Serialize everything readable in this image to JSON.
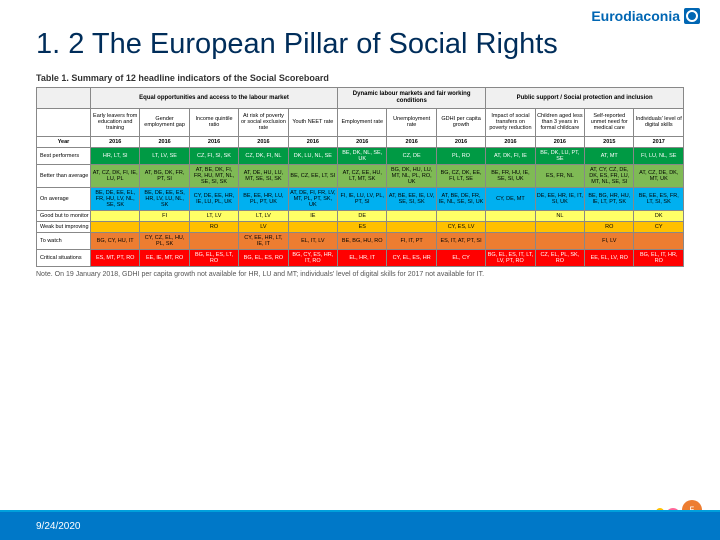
{
  "logo_text": "Eurodiaconia",
  "title": "1. 2 The European Pillar of Social Rights",
  "table_title": "Table 1. Summary of 12 headline indicators of the Social Scoreboard",
  "note": "Note. On 19 January 2018, GDHI per capita growth not available for HR, LU and MT; individuals' level of digital skills for 2017 not available for IT.",
  "date": "9/24/2020",
  "page_num": "5",
  "group_headers": [
    "Equal opportunities and access to the labour market",
    "Dynamic labour markets and fair working conditions",
    "Public support / Social protection and inclusion"
  ],
  "columns": [
    "Early leavers from education and training",
    "Gender employment gap",
    "Income quintile ratio",
    "At risk of poverty or social exclusion rate",
    "Youth NEET rate",
    "Employment rate",
    "Unemployment rate",
    "GDHI per capita growth",
    "Impact of social transfers on poverty reduction",
    "Children aged less than 3 years in formal childcare",
    "Self-reported unmet need for medical care",
    "Individuals' level of digital skills"
  ],
  "years": [
    "2016",
    "2016",
    "2016",
    "2016",
    "2016",
    "2016",
    "2016",
    "2016",
    "2016",
    "2016",
    "2015",
    "2017"
  ],
  "row_labels": [
    "Best performers",
    "Better than average",
    "On average",
    "Good but to monitor",
    "Weak but improving",
    "To watch",
    "Critical situations"
  ],
  "row_colors": [
    "#009a44",
    "#7fba55",
    "#00b0f0",
    "#ffff66",
    "#ffc000",
    "#ed7d31",
    "#ff0000"
  ],
  "rows": [
    [
      "HR, LT, SI",
      "LT, LV, SE",
      "CZ, FI, SI, SK",
      "CZ, DK, FI, NL",
      "DK, LU, NL, SE",
      "BE, DK, NL, SE, UK",
      "CZ, DE",
      "PL, RO",
      "AT, DK, FI, IE",
      "BE, DK, LU, PT, SE",
      "AT, MT",
      "FI, LU, NL, SE"
    ],
    [
      "AT, CZ, DK, FI, IE, LU, PL",
      "AT, BG, DK, FR, PT, SI",
      "AT, BE, DK, FI, FR, HU, MT, NL, SE, SI, SK",
      "AT, DE, HU, LU, MT, SE, SI, SK",
      "BE, CZ, EE, LT, SI",
      "AT, CZ, EE, HU, LT, MT, SK",
      "BG, DK, HU, LU, MT, NL, PL, RO, UK",
      "BG, CZ, DK, EE, FI, LT, SE",
      "BE, FR, HU, IE, SE, SI, UK",
      "ES, FR, NL",
      "AT, CY, CZ, DE, DK, ES, FR, LU, MT, NL, SE, SI",
      "AT, CZ, DE, DK, MT, UK"
    ],
    [
      "BE, DE, EE, EL, FR, HU, LV, NL, SE, SK",
      "BE, DE, EE, ES, HR, LV, LU, NL, SK",
      "CY, DE, EE, HR, IE, LU, PL, UK",
      "BE, EE, HR, LU, PL, PT, UK",
      "AT, DE, FI, FR, LV, MT, PL, PT, SK, UK",
      "FI, IE, LU, LV, PL, PT, SI",
      "AT, BE, EE, IE, LV, SE, SI, SK",
      "AT, BE, DE, FR, IE, NL, SE, SI, UK",
      "CY, DE, MT",
      "DE, EE, HR, IE, IT, SI, UK",
      "BE, BG, HR, HU, IE, LT, PT, SK",
      "BE, EE, ES, FR, LT, SI, SK"
    ],
    [
      "",
      "FI",
      "LT, LV",
      "LT, LV",
      "IE",
      "DE",
      "",
      "",
      "",
      "NL",
      "",
      "DK"
    ],
    [
      "",
      "",
      "RO",
      "LV",
      "",
      "ES",
      "",
      "CY, ES, LV",
      "",
      "",
      "RO",
      "CY"
    ],
    [
      "BG, CY, HU, IT",
      "CY, CZ, EL, HU, PL, SK",
      "",
      "CY, EE, HR, LT, IE, IT",
      "EL, IT, LV",
      "BE, BG, HU, RO",
      "FI, IT, PT",
      "ES, IT, AT, PT, SI",
      "",
      "",
      "FI, LV",
      ""
    ],
    [
      "ES, MT, PT, RO",
      "EE, IE, MT, RO",
      "BG, EL, ES, LT, RO",
      "BG, EL, ES, RO",
      "BG, CY, ES, HR, IT, RO",
      "EL, HR, IT",
      "CY, EL, ES, HR",
      "EL, CY",
      "BG, EL, ES, IT, LT, LV, PT, RO",
      "CZ, EL, PL, SK, RO",
      "EE, EL, LV, RO",
      "BG, EL, IT, HR, RO"
    ]
  ]
}
